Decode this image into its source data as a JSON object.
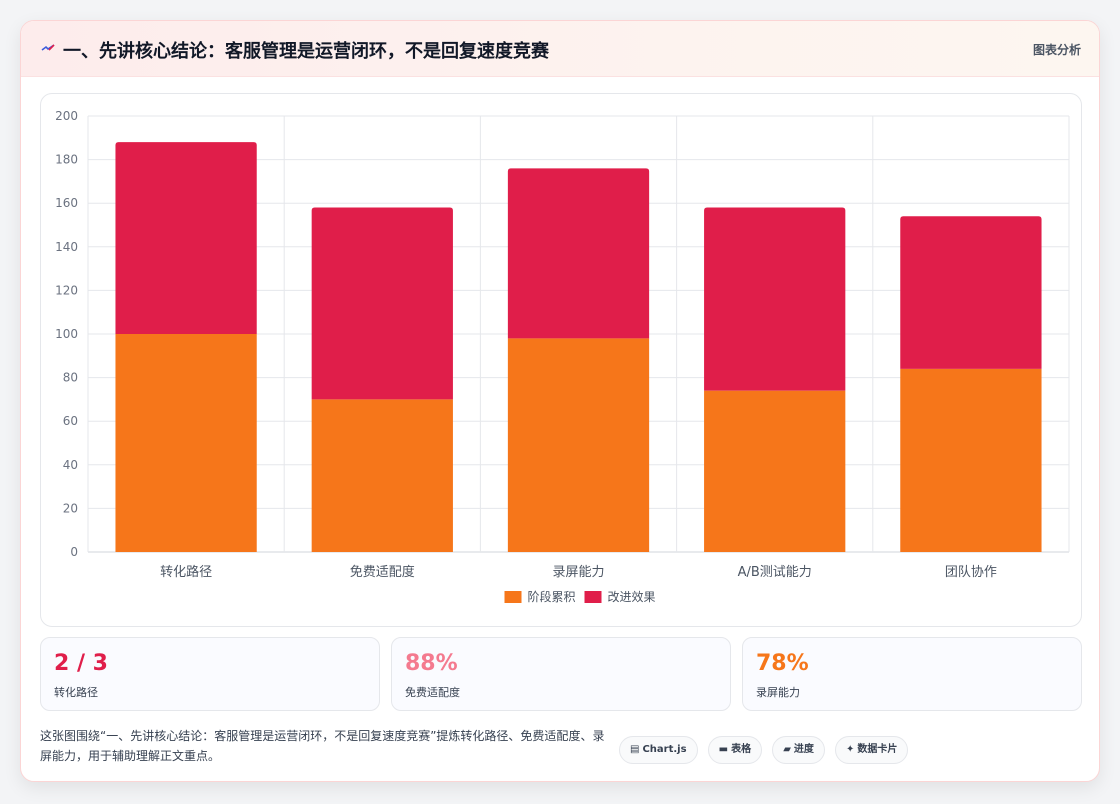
{
  "header": {
    "icon": "lightning-icon",
    "title": "一、先讲核心结论：客服管理是运营闭环，不是回复速度竞赛",
    "link_label": "图表分析"
  },
  "chart_data": {
    "type": "bar",
    "stacked": true,
    "categories": [
      "转化路径",
      "免费适配度",
      "录屏能力",
      "A/B测试能力",
      "团队协作"
    ],
    "series": [
      {
        "name": "阶段累积",
        "values": [
          100,
          70,
          98,
          74,
          84
        ],
        "color": "#f6761a"
      },
      {
        "name": "改进效果",
        "values": [
          88,
          88,
          78,
          84,
          70
        ],
        "color": "#e01e4a"
      }
    ],
    "ylim": [
      0,
      200
    ],
    "yticks": [
      0,
      20,
      40,
      60,
      80,
      100,
      120,
      140,
      160,
      180,
      200
    ],
    "grid": true,
    "legend": "bottom"
  },
  "kpis": [
    {
      "value": "2 / 3",
      "label": "转化路径",
      "color": "#e01e4a"
    },
    {
      "value": "88%",
      "label": "免费适配度",
      "color": "#f47a8f"
    },
    {
      "value": "78%",
      "label": "录屏能力",
      "color": "#f6761a"
    }
  ],
  "footer": {
    "description": "这张图围绕“一、先讲核心结论：客服管理是运营闭环，不是回复速度竞赛”提炼转化路径、免费适配度、录屏能力，用于辅助理解正文重点。",
    "chips": [
      {
        "icon": "chart-icon",
        "glyph": "▤",
        "label": "Chart.js"
      },
      {
        "icon": "table-icon",
        "glyph": "▬",
        "label": "表格"
      },
      {
        "icon": "progress-icon",
        "glyph": "▰",
        "label": "进度"
      },
      {
        "icon": "sparkle-icon",
        "glyph": "✦",
        "label": "数据卡片"
      }
    ]
  }
}
